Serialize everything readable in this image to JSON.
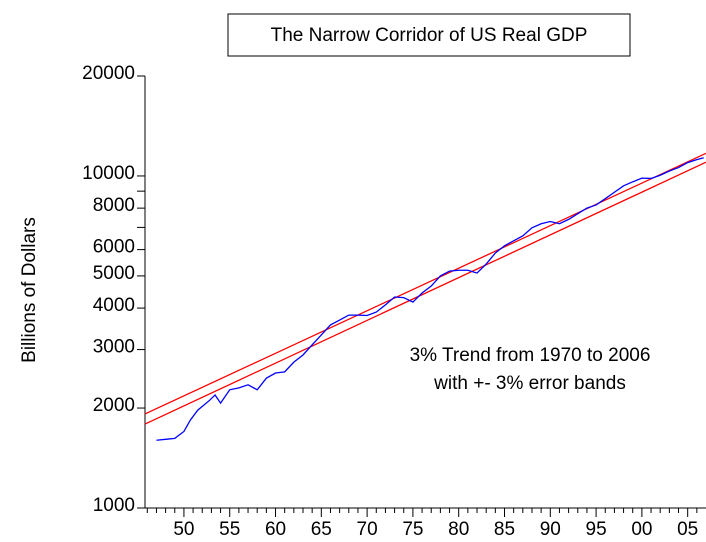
{
  "chart_data": {
    "type": "line",
    "title": "The Narrow Corridor of US Real GDP",
    "y_label": "Billions of Dollars",
    "annotations": [
      "3% Trend from 1970 to 2006",
      "with +- 3% error bands"
    ],
    "log_scale_y": true,
    "xlim": [
      1945.75,
      2007
    ],
    "ylim": [
      1000,
      20000
    ],
    "yticks": [
      1000,
      2000,
      3000,
      4000,
      5000,
      6000,
      8000,
      10000,
      20000
    ],
    "yminorticks": [
      7000,
      9000
    ],
    "xticks": [
      {
        "value": 1950,
        "label": "50"
      },
      {
        "value": 1955,
        "label": "55"
      },
      {
        "value": 1960,
        "label": "60"
      },
      {
        "value": 1965,
        "label": "65"
      },
      {
        "value": 1970,
        "label": "70"
      },
      {
        "value": 1975,
        "label": "75"
      },
      {
        "value": 1980,
        "label": "80"
      },
      {
        "value": 1985,
        "label": "85"
      },
      {
        "value": 1990,
        "label": "90"
      },
      {
        "value": 1995,
        "label": "95"
      },
      {
        "value": 2000,
        "label": "00"
      },
      {
        "value": 2005,
        "label": "05"
      }
    ],
    "xminorticks": [
      1946,
      1947,
      1948,
      1949,
      1951,
      1952,
      1953,
      1954,
      1956,
      1957,
      1958,
      1959,
      1961,
      1962,
      1963,
      1964,
      1966,
      1967,
      1968,
      1969,
      1971,
      1972,
      1973,
      1974,
      1976,
      1977,
      1978,
      1979,
      1981,
      1982,
      1983,
      1984,
      1986,
      1987,
      1988,
      1989,
      1991,
      1992,
      1993,
      1994,
      1996,
      1997,
      1998,
      1999,
      2001,
      2002,
      2003,
      2004,
      2006
    ],
    "series": [
      {
        "color": "#ff0000",
        "x": [
          1945.75,
          2007
        ],
        "values": [
          1920,
          11700
        ]
      },
      {
        "color": "#ff0000",
        "x": [
          1945.75,
          2007
        ],
        "values": [
          1790,
          11000
        ]
      },
      {
        "color": "#0000ff",
        "x": [
          1947,
          1948,
          1949,
          1949.5,
          1950,
          1950.7,
          1951.5,
          1952.8,
          1953.4,
          1954,
          1955,
          1956,
          1957,
          1958,
          1959,
          1960,
          1961,
          1962,
          1963,
          1964,
          1965,
          1966,
          1967,
          1968,
          1969,
          1970,
          1971,
          1972,
          1973,
          1974,
          1975,
          1976,
          1977,
          1978,
          1979,
          1980,
          1981,
          1982,
          1983,
          1984,
          1985,
          1986,
          1987,
          1988,
          1989,
          1990,
          1991,
          1992,
          1993,
          1994,
          1995,
          1996,
          1997,
          1998,
          1999,
          2000,
          2001,
          2002,
          2003,
          2004,
          2005,
          2006,
          2006.75
        ],
        "values": [
          1600,
          1610,
          1620,
          1660,
          1700,
          1840,
          1970,
          2110,
          2190,
          2070,
          2270,
          2300,
          2350,
          2270,
          2460,
          2550,
          2570,
          2750,
          2890,
          3100,
          3320,
          3560,
          3680,
          3810,
          3810,
          3800,
          3890,
          4090,
          4320,
          4300,
          4170,
          4440,
          4660,
          5000,
          5170,
          5200,
          5200,
          5100,
          5430,
          5860,
          6160,
          6380,
          6600,
          6980,
          7180,
          7290,
          7180,
          7400,
          7700,
          8000,
          8180,
          8540,
          8930,
          9340,
          9600,
          9850,
          9830,
          10050,
          10350,
          10600,
          10970,
          11200,
          11350
        ]
      }
    ]
  }
}
